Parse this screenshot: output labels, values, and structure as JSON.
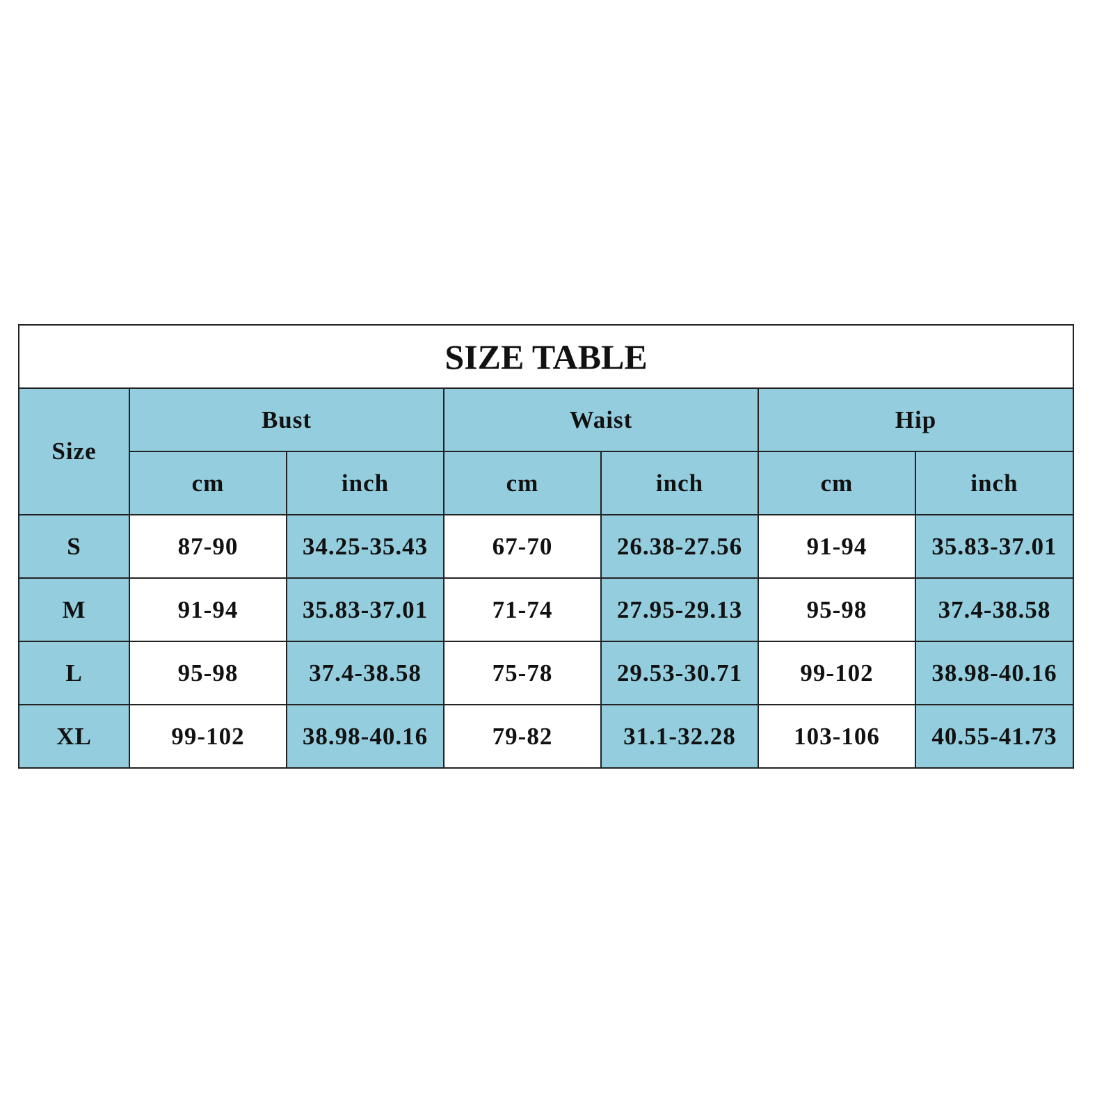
{
  "title": "SIZE TABLE",
  "colors": {
    "header_bg": "#94cddd",
    "alt_bg": "#ffffff",
    "border": "#222222"
  },
  "headers": {
    "size": "Size",
    "groups": [
      "Bust",
      "Waist",
      "Hip"
    ],
    "units": [
      "cm",
      "inch",
      "cm",
      "inch",
      "cm",
      "inch"
    ]
  },
  "rows": [
    {
      "size": "S",
      "values": [
        "87-90",
        "34.25-35.43",
        "67-70",
        "26.38-27.56",
        "91-94",
        "35.83-37.01"
      ]
    },
    {
      "size": "M",
      "values": [
        "91-94",
        "35.83-37.01",
        "71-74",
        "27.95-29.13",
        "95-98",
        "37.4-38.58"
      ]
    },
    {
      "size": "L",
      "values": [
        "95-98",
        "37.4-38.58",
        "75-78",
        "29.53-30.71",
        "99-102",
        "38.98-40.16"
      ]
    },
    {
      "size": "XL",
      "values": [
        "99-102",
        "38.98-40.16",
        "79-82",
        "31.1-32.28",
        "103-106",
        "40.55-41.73"
      ]
    }
  ]
}
